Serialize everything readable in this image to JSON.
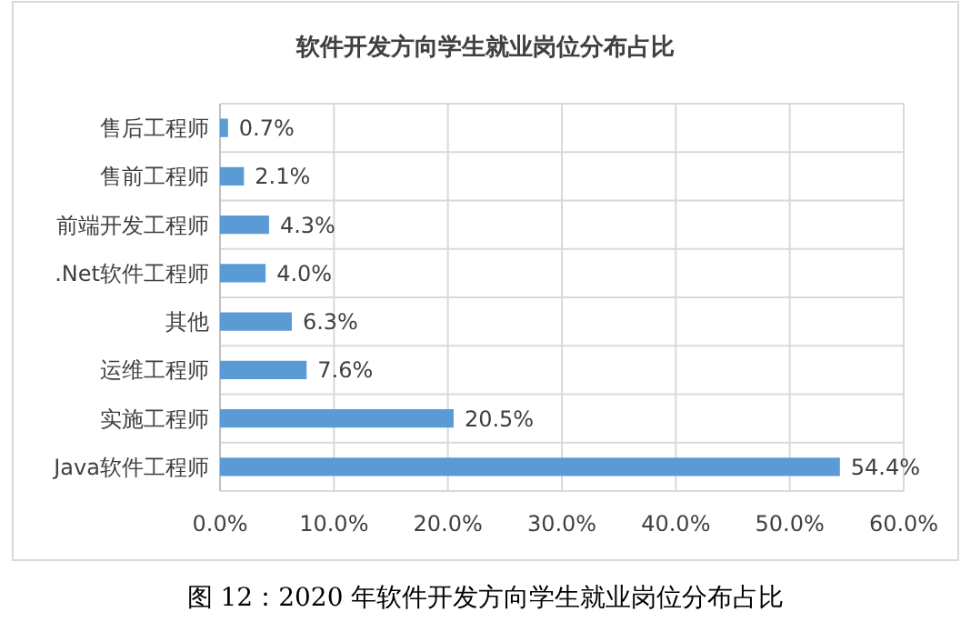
{
  "chart_data": {
    "type": "bar",
    "orientation": "horizontal",
    "title": "软件开发方向学生就业岗位分布占比",
    "categories": [
      "售后工程师",
      "售前工程师",
      "前端开发工程师",
      ".Net软件工程师",
      "其他",
      "运维工程师",
      "实施工程师",
      "Java软件工程师"
    ],
    "values": [
      0.7,
      2.1,
      4.3,
      4.0,
      6.3,
      7.6,
      20.5,
      54.4
    ],
    "value_labels": [
      "0.7%",
      "2.1%",
      "4.3%",
      "4.0%",
      "6.3%",
      "7.6%",
      "20.5%",
      "54.4%"
    ],
    "color": "#5b9bd5",
    "xlim": [
      0,
      60
    ],
    "xticks": [
      {
        "value": 0,
        "label": "0.0%"
      },
      {
        "value": 10,
        "label": "10.0%"
      },
      {
        "value": 20,
        "label": "20.0%"
      },
      {
        "value": 30,
        "label": "30.0%"
      },
      {
        "value": 40,
        "label": "40.0%"
      },
      {
        "value": 50,
        "label": "50.0%"
      },
      {
        "value": 60,
        "label": "60.0%"
      }
    ],
    "grid": true,
    "annotations": [
      "图 12：2020 年软件开发方向学生就业岗位分布占比"
    ]
  }
}
